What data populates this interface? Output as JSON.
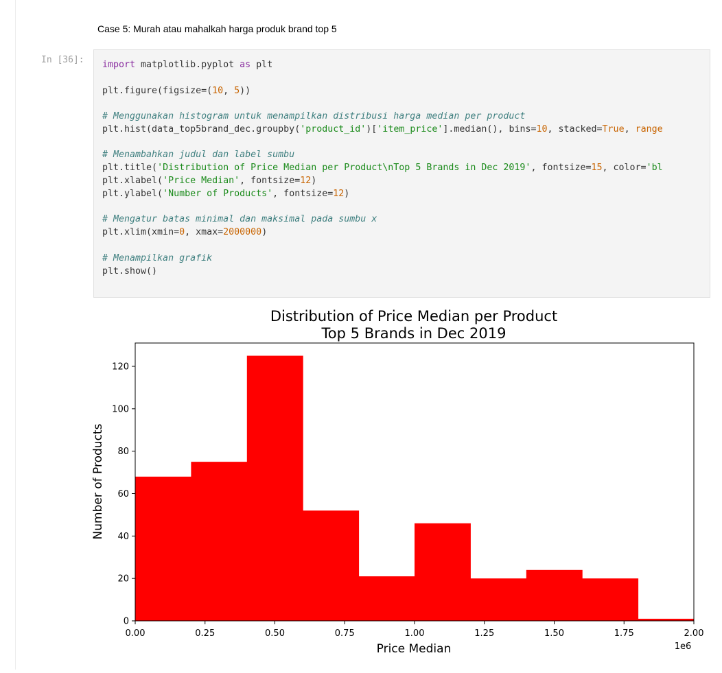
{
  "notebook": {
    "markdown_text": "Case 5: Murah atau mahalkah harga produk brand top 5",
    "prompt": "In [36]:",
    "code": {
      "l1_kw": "import",
      "l1_a": " matplotlib.pyplot ",
      "l1_kw2": "as",
      "l1_b": " plt",
      "l2_a": "plt.figure(figsize=(",
      "l2_n1": "10",
      "l2_b": ", ",
      "l2_n2": "5",
      "l2_c": "))",
      "l3_comment": "# Menggunakan histogram untuk menampilkan distribusi harga median per product",
      "l4_a": "plt.hist(data_top5brand_dec.groupby(",
      "l4_s1": "'product_id'",
      "l4_b": ")[",
      "l4_s2": "'item_price'",
      "l4_c": "].median(), bins=",
      "l4_n1": "10",
      "l4_d": ", stacked=",
      "l4_n2": "True",
      "l4_e": ", ",
      "l4_n3": "range",
      "l5_comment": "# Menambahkan judul dan label sumbu",
      "l6_a": "plt.title(",
      "l6_s1": "'Distribution of Price Median per Product\\nTop 5 Brands in Dec 2019'",
      "l6_b": ", fontsize=",
      "l6_n1": "15",
      "l6_c": ", color=",
      "l6_s2": "'bl",
      "l7_a": "plt.xlabel(",
      "l7_s1": "'Price Median'",
      "l7_b": ", fontsize=",
      "l7_n1": "12",
      "l7_c": ")",
      "l8_a": "plt.ylabel(",
      "l8_s1": "'Number of Products'",
      "l8_b": ", fontsize=",
      "l8_n1": "12",
      "l8_c": ")",
      "l9_comment": "# Mengatur batas minimal dan maksimal pada sumbu x",
      "l10_a": "plt.xlim(xmin=",
      "l10_n1": "0",
      "l10_b": ", xmax=",
      "l10_n2": "2000000",
      "l10_c": ")",
      "l11_comment": "# Menampilkan grafik",
      "l12_a": "plt.show()"
    }
  },
  "colors": {
    "bar": "#ff0000",
    "axis": "#000000"
  },
  "chart_data": {
    "type": "bar",
    "title_line1": "Distribution of Price Median per Product",
    "title_line2": "Top 5 Brands in Dec 2019",
    "xlabel": "Price Median",
    "ylabel": "Number of Products",
    "x_offset_label": "1e6",
    "bin_edges": [
      0.0,
      0.2,
      0.4,
      0.6,
      0.8,
      1.0,
      1.2,
      1.4,
      1.6,
      1.8,
      2.0
    ],
    "values": [
      68,
      75,
      125,
      52,
      21,
      46,
      20,
      24,
      20,
      1
    ],
    "xlim": [
      0.0,
      2.0
    ],
    "ylim": [
      0,
      131
    ],
    "xticks": [
      0.0,
      0.25,
      0.5,
      0.75,
      1.0,
      1.25,
      1.5,
      1.75,
      2.0
    ],
    "xtick_labels": [
      "0.00",
      "0.25",
      "0.50",
      "0.75",
      "1.00",
      "1.25",
      "1.50",
      "1.75",
      "2.00"
    ],
    "yticks": [
      0,
      20,
      40,
      60,
      80,
      100,
      120
    ],
    "ytick_labels": [
      "0",
      "20",
      "40",
      "60",
      "80",
      "100",
      "120"
    ],
    "grid": false
  }
}
